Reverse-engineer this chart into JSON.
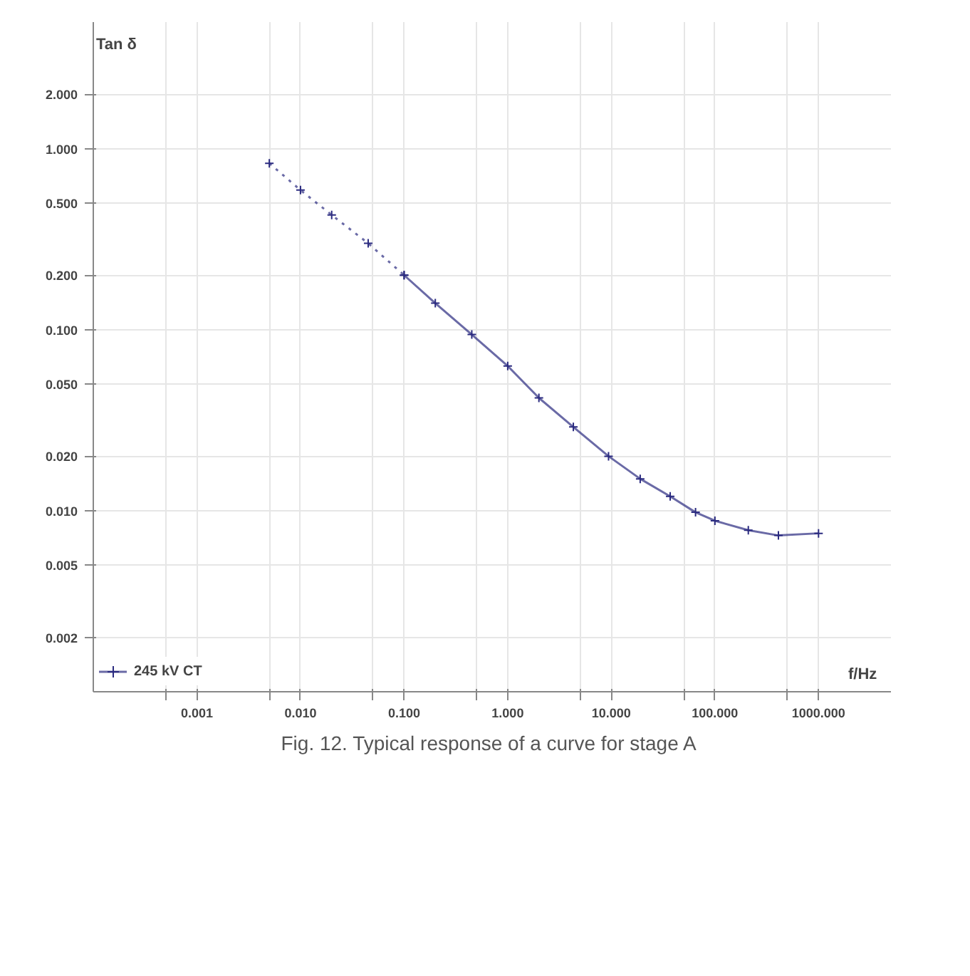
{
  "chart_data": {
    "type": "line",
    "xlabel": "f/Hz",
    "ylabel": "Tan δ",
    "log": "xy",
    "xlim": [
      0.0001,
      5000
    ],
    "ylim": [
      0.001,
      5
    ],
    "xticks": [
      {
        "value": 0.0005,
        "label": null
      },
      {
        "value": 0.001,
        "label": "0.001"
      },
      {
        "value": 0.005,
        "label": null
      },
      {
        "value": 0.01,
        "label": "0.010"
      },
      {
        "value": 0.05,
        "label": null
      },
      {
        "value": 0.1,
        "label": "0.100"
      },
      {
        "value": 0.5,
        "label": null
      },
      {
        "value": 1,
        "label": "1.000"
      },
      {
        "value": 5,
        "label": null
      },
      {
        "value": 10,
        "label": "10.000"
      },
      {
        "value": 50,
        "label": null
      },
      {
        "value": 100,
        "label": "100.000"
      },
      {
        "value": 500,
        "label": null
      },
      {
        "value": 1000,
        "label": "1000.000"
      }
    ],
    "yticks": [
      {
        "value": 0.002,
        "label": "0.002"
      },
      {
        "value": 0.005,
        "label": "0.005"
      },
      {
        "value": 0.01,
        "label": "0.010"
      },
      {
        "value": 0.02,
        "label": "0.020"
      },
      {
        "value": 0.05,
        "label": "0.050"
      },
      {
        "value": 0.1,
        "label": "0.100"
      },
      {
        "value": 0.2,
        "label": "0.200"
      },
      {
        "value": 0.5,
        "label": "0.500"
      },
      {
        "value": 1,
        "label": "1.000"
      },
      {
        "value": 2,
        "label": "2.000"
      }
    ],
    "series": [
      {
        "color": "#2b2b80",
        "line_style": "dotted",
        "x": [
          0.005,
          0.01,
          0.02,
          0.045,
          0.1
        ],
        "values": [
          0.83,
          0.59,
          0.43,
          0.3,
          0.2
        ]
      },
      {
        "name": "245 kV CT",
        "color": "#2b2b80",
        "line_style": "solid",
        "x": [
          0.1,
          0.2,
          0.45,
          1,
          2,
          4.3,
          9.4,
          19,
          37,
          65,
          100,
          210,
          410,
          1000
        ],
        "values": [
          0.2,
          0.14,
          0.094,
          0.063,
          0.042,
          0.029,
          0.02,
          0.015,
          0.012,
          0.0098,
          0.0088,
          0.0078,
          0.0073,
          0.0075
        ]
      }
    ],
    "marker": "cross",
    "grid": true,
    "legend": "bottom",
    "annotations": [
      "Fig.  12. Typical response of a curve for stage A"
    ]
  }
}
